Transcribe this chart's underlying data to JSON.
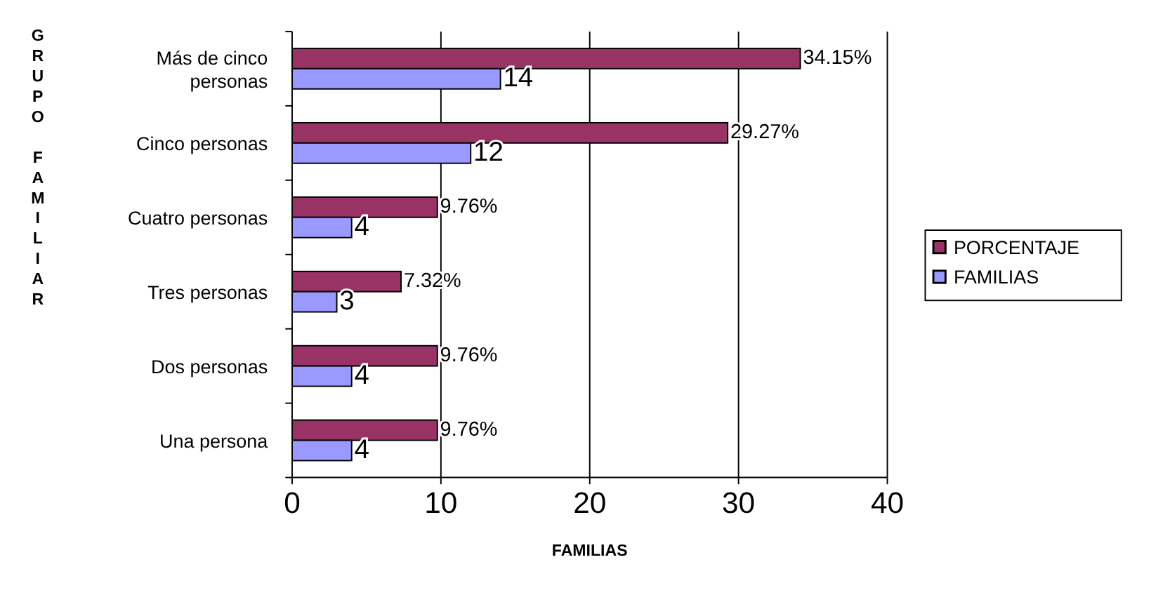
{
  "chart_data": {
    "type": "bar",
    "orientation": "horizontal",
    "ylabel": "GRUPO FAMILIAR",
    "xlabel": "FAMILIAS",
    "categories": [
      "Más de cinco personas",
      "Cinco personas",
      "Cuatro personas",
      "Tres personas",
      "Dos personas",
      "Una persona"
    ],
    "series": [
      {
        "name": "PORCENTAJE",
        "color": "#993366",
        "values": [
          34.15,
          29.27,
          9.76,
          7.32,
          9.76,
          9.76
        ],
        "value_labels": [
          "34.15%",
          "29.27%",
          "9.76%",
          "7.32%",
          "9.76%",
          "9.76%"
        ]
      },
      {
        "name": "FAMILIAS",
        "color": "#9999ff",
        "values": [
          14,
          12,
          4,
          3,
          4,
          4
        ],
        "value_labels": [
          "14",
          "12",
          "4",
          "3",
          "4",
          "4"
        ]
      }
    ],
    "xlim": [
      0,
      40
    ],
    "xticks": [
      0,
      10,
      20,
      30,
      40
    ],
    "grid": "x",
    "legend": "right"
  }
}
